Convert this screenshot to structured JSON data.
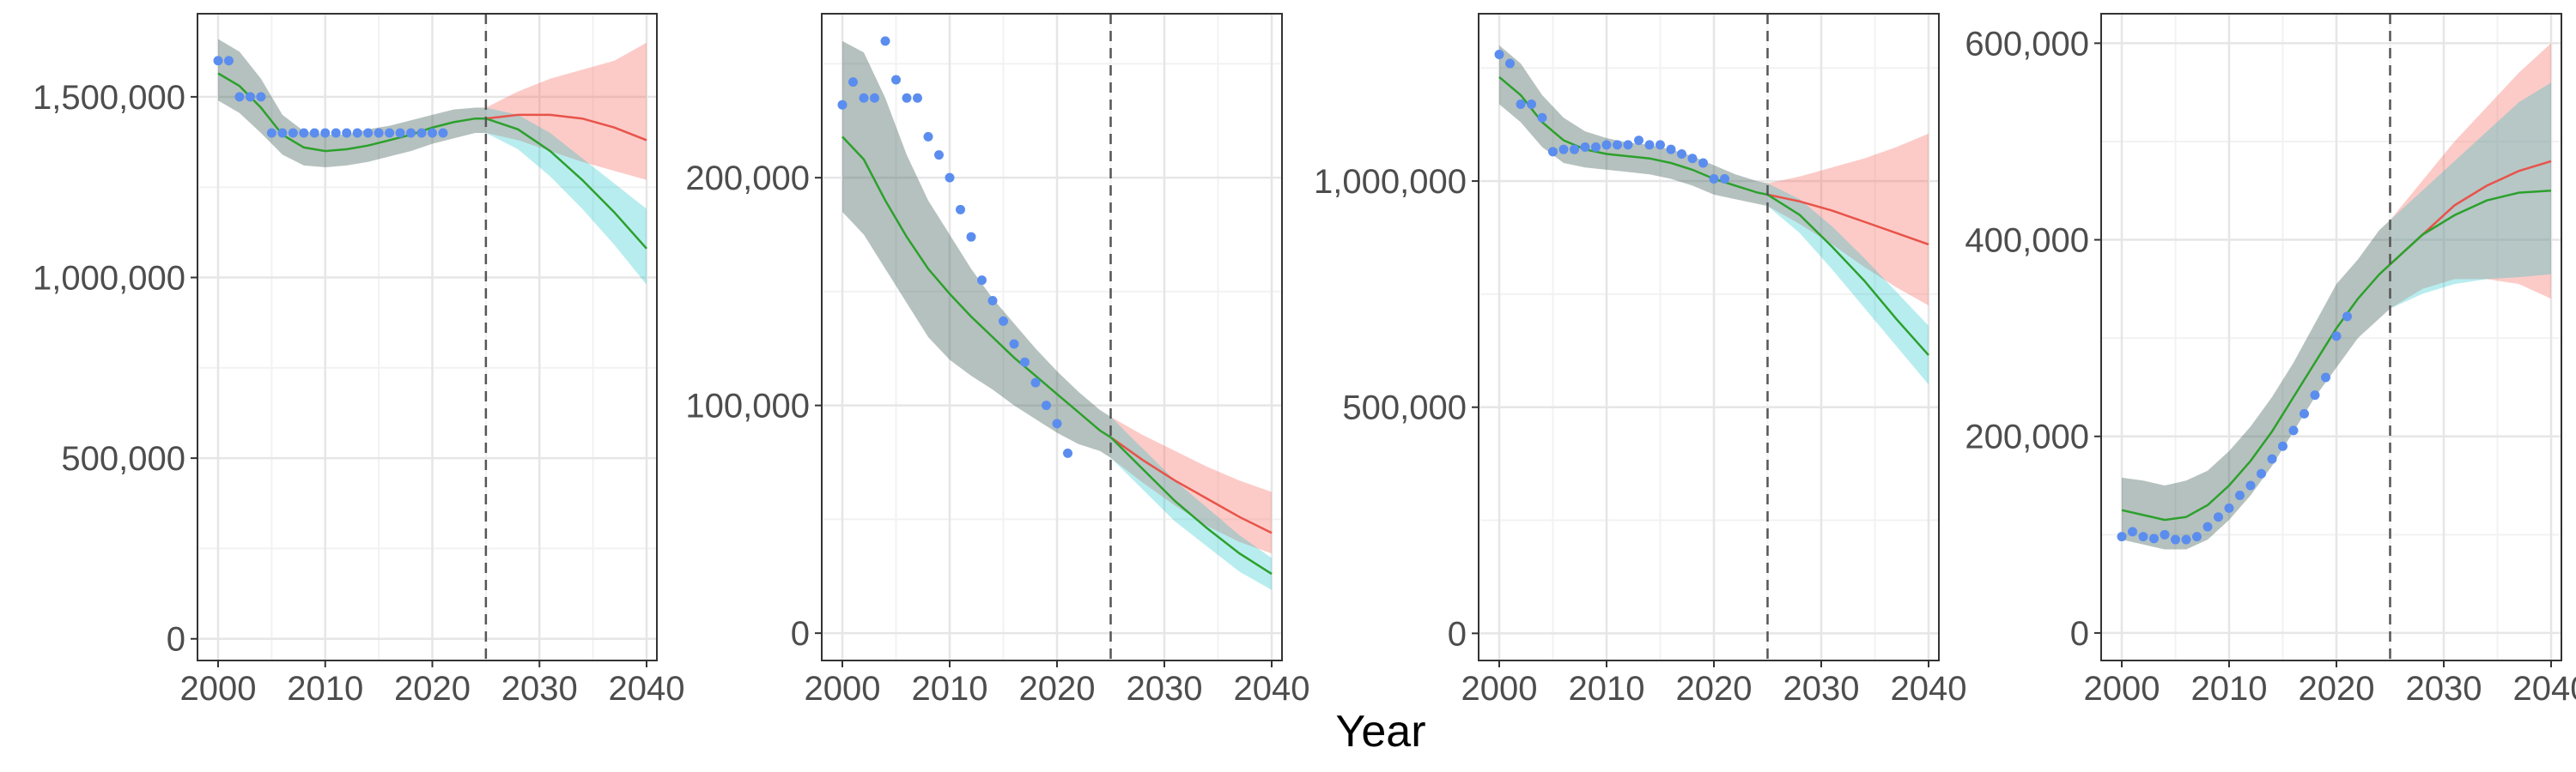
{
  "figure": {
    "x_axis_title": "Year"
  },
  "colors": {
    "observed": "#5b8def",
    "fit_line": "#2ca02c",
    "red_line": "#e8534a",
    "red_band": "#f8766d",
    "cyan_band": "#00bfc4",
    "fit_band": "#4e6b63",
    "vline": "#555555",
    "grid_major": "#e6e6e6",
    "grid_minor": "#f2f2f2",
    "panel_border": "#333333"
  },
  "chart_data": [
    {
      "type": "line",
      "xlim": [
        2000,
        2040
      ],
      "ylim": [
        -60000,
        1730000
      ],
      "x_ticks": [
        2000,
        2010,
        2020,
        2030,
        2040
      ],
      "y_ticks": [
        0,
        500000,
        1000000,
        1500000
      ],
      "y_tick_labels": [
        "0",
        "500,000",
        "1,000,000",
        "1,500,000"
      ],
      "vline_x": 2025,
      "observed": {
        "x": [
          2000,
          2001,
          2002,
          2003,
          2004,
          2005,
          2006,
          2007,
          2008,
          2009,
          2010,
          2011,
          2012,
          2013,
          2014,
          2015,
          2016,
          2017,
          2018,
          2019,
          2020,
          2021
        ],
        "y": [
          1600000,
          1600000,
          1500000,
          1500000,
          1500000,
          1400000,
          1400000,
          1400000,
          1400000,
          1400000,
          1400000,
          1400000,
          1400000,
          1400000,
          1400000,
          1400000,
          1400000,
          1400000,
          1400000,
          1400000,
          1400000,
          1400000
        ]
      },
      "fit": {
        "x": [
          2000,
          2002,
          2004,
          2006,
          2008,
          2010,
          2012,
          2014,
          2016,
          2018,
          2020,
          2022,
          2024,
          2025
        ],
        "y": [
          1565000,
          1530000,
          1470000,
          1395000,
          1360000,
          1350000,
          1355000,
          1365000,
          1380000,
          1395000,
          1415000,
          1430000,
          1440000,
          1440000
        ],
        "upper": [
          1660000,
          1625000,
          1550000,
          1450000,
          1405000,
          1395000,
          1395000,
          1410000,
          1420000,
          1435000,
          1450000,
          1465000,
          1470000,
          1470000
        ],
        "lower": [
          1490000,
          1455000,
          1400000,
          1340000,
          1310000,
          1305000,
          1310000,
          1320000,
          1335000,
          1350000,
          1370000,
          1385000,
          1400000,
          1400000
        ]
      },
      "red": {
        "x": [
          2025,
          2028,
          2031,
          2034,
          2037,
          2040
        ],
        "y": [
          1440000,
          1450000,
          1450000,
          1440000,
          1415000,
          1380000
        ],
        "upper": [
          1470000,
          1515000,
          1550000,
          1575000,
          1600000,
          1650000
        ],
        "lower": [
          1400000,
          1380000,
          1350000,
          1320000,
          1295000,
          1270000
        ]
      },
      "green_proj": {
        "x": [
          2025,
          2028,
          2031,
          2034,
          2037,
          2040
        ],
        "y": [
          1440000,
          1410000,
          1350000,
          1270000,
          1180000,
          1080000
        ],
        "upper": [
          1470000,
          1450000,
          1400000,
          1330000,
          1260000,
          1190000
        ],
        "lower": [
          1400000,
          1355000,
          1280000,
          1190000,
          1090000,
          980000
        ]
      }
    },
    {
      "type": "line",
      "xlim": [
        2000,
        2040
      ],
      "ylim": [
        -12000,
        272000
      ],
      "x_ticks": [
        2000,
        2010,
        2020,
        2030,
        2040
      ],
      "y_ticks": [
        0,
        100000,
        200000
      ],
      "y_tick_labels": [
        "0",
        "100,000",
        "200,000"
      ],
      "vline_x": 2025,
      "observed": {
        "x": [
          2000,
          2001,
          2002,
          2003,
          2004,
          2005,
          2006,
          2007,
          2008,
          2009,
          2010,
          2011,
          2012,
          2013,
          2014,
          2015,
          2016,
          2017,
          2018,
          2019,
          2020,
          2021
        ],
        "y": [
          232000,
          242000,
          235000,
          235000,
          260000,
          243000,
          235000,
          235000,
          218000,
          210000,
          200000,
          186000,
          174000,
          155000,
          146000,
          137000,
          127000,
          119000,
          110000,
          100000,
          92000,
          79000
        ]
      },
      "fit": {
        "x": [
          2000,
          2002,
          2004,
          2006,
          2008,
          2010,
          2012,
          2014,
          2016,
          2018,
          2020,
          2022,
          2024,
          2025
        ],
        "y": [
          218000,
          208000,
          190000,
          174000,
          160000,
          149000,
          139000,
          130000,
          121000,
          113000,
          105000,
          97000,
          89000,
          86000
        ],
        "upper": [
          260000,
          255000,
          235000,
          210000,
          190000,
          175000,
          160000,
          147000,
          136000,
          125000,
          115000,
          106000,
          98000,
          95000
        ],
        "lower": [
          185000,
          175000,
          160000,
          145000,
          130000,
          120000,
          113000,
          107000,
          100000,
          94000,
          88000,
          83000,
          80000,
          77000
        ]
      },
      "red": {
        "x": [
          2025,
          2028,
          2031,
          2034,
          2037,
          2040
        ],
        "y": [
          86000,
          76000,
          67000,
          59000,
          51000,
          44000
        ],
        "upper": [
          95000,
          87000,
          80000,
          73000,
          67000,
          62000
        ],
        "lower": [
          77000,
          66000,
          56000,
          47000,
          40000,
          35000
        ]
      },
      "green_proj": {
        "x": [
          2025,
          2028,
          2031,
          2034,
          2037,
          2040
        ],
        "y": [
          86000,
          72000,
          58000,
          46000,
          35000,
          26000
        ],
        "upper": [
          95000,
          81000,
          67000,
          55000,
          43000,
          33000
        ],
        "lower": [
          77000,
          63000,
          49000,
          38000,
          27000,
          19000
        ]
      }
    },
    {
      "type": "line",
      "xlim": [
        2000,
        2040
      ],
      "ylim": [
        -60000,
        1370000
      ],
      "x_ticks": [
        2000,
        2010,
        2020,
        2030,
        2040
      ],
      "y_ticks": [
        0,
        500000,
        1000000
      ],
      "y_tick_labels": [
        "0",
        "500,000",
        "1,000,000"
      ],
      "vline_x": 2025,
      "observed": {
        "x": [
          2000,
          2001,
          2002,
          2003,
          2004,
          2005,
          2006,
          2007,
          2008,
          2009,
          2010,
          2011,
          2012,
          2013,
          2014,
          2015,
          2016,
          2017,
          2018,
          2019,
          2020,
          2021
        ],
        "y": [
          1280000,
          1260000,
          1170000,
          1170000,
          1140000,
          1065000,
          1070000,
          1070000,
          1075000,
          1075000,
          1080000,
          1080000,
          1080000,
          1090000,
          1080000,
          1080000,
          1070000,
          1060000,
          1050000,
          1040000,
          1005000,
          1005000
        ]
      },
      "fit": {
        "x": [
          2000,
          2002,
          2004,
          2006,
          2008,
          2010,
          2012,
          2014,
          2016,
          2018,
          2020,
          2022,
          2024,
          2025
        ],
        "y": [
          1230000,
          1190000,
          1130000,
          1090000,
          1070000,
          1060000,
          1055000,
          1050000,
          1040000,
          1025000,
          1005000,
          990000,
          975000,
          970000
        ],
        "upper": [
          1300000,
          1260000,
          1190000,
          1140000,
          1110000,
          1095000,
          1085000,
          1080000,
          1070000,
          1055000,
          1035000,
          1015000,
          1000000,
          995000
        ],
        "lower": [
          1170000,
          1130000,
          1075000,
          1040000,
          1030000,
          1025000,
          1020000,
          1015000,
          1005000,
          990000,
          970000,
          960000,
          950000,
          945000
        ]
      },
      "red": {
        "x": [
          2025,
          2028,
          2031,
          2034,
          2037,
          2040
        ],
        "y": [
          970000,
          955000,
          935000,
          910000,
          885000,
          860000
        ],
        "upper": [
          995000,
          1010000,
          1030000,
          1050000,
          1075000,
          1105000
        ],
        "lower": [
          945000,
          905000,
          860000,
          810000,
          765000,
          725000
        ]
      },
      "green_proj": {
        "x": [
          2025,
          2028,
          2031,
          2034,
          2037,
          2040
        ],
        "y": [
          970000,
          925000,
          855000,
          780000,
          695000,
          615000
        ],
        "upper": [
          995000,
          960000,
          900000,
          830000,
          755000,
          680000
        ],
        "lower": [
          945000,
          885000,
          805000,
          720000,
          635000,
          550000
        ]
      }
    },
    {
      "type": "line",
      "xlim": [
        2000,
        2040
      ],
      "ylim": [
        -28000,
        630000
      ],
      "x_ticks": [
        2000,
        2010,
        2020,
        2030,
        2040
      ],
      "y_ticks": [
        0,
        200000,
        400000,
        600000
      ],
      "y_tick_labels": [
        "0",
        "200,000",
        "400,000",
        "600,000"
      ],
      "vline_x": 2025,
      "observed": {
        "x": [
          2000,
          2001,
          2002,
          2003,
          2004,
          2005,
          2006,
          2007,
          2008,
          2009,
          2010,
          2011,
          2012,
          2013,
          2014,
          2015,
          2016,
          2017,
          2018,
          2019,
          2020,
          2021
        ],
        "y": [
          98000,
          103000,
          98000,
          96000,
          100000,
          95000,
          95000,
          98000,
          108000,
          118000,
          127000,
          140000,
          150000,
          162000,
          177000,
          190000,
          206000,
          223000,
          242000,
          260000,
          302000,
          322000
        ]
      },
      "fit": {
        "x": [
          2000,
          2002,
          2004,
          2006,
          2008,
          2010,
          2012,
          2014,
          2016,
          2018,
          2020,
          2022,
          2024,
          2025
        ],
        "y": [
          125000,
          120000,
          115000,
          118000,
          130000,
          150000,
          175000,
          205000,
          240000,
          275000,
          310000,
          340000,
          365000,
          375000
        ],
        "upper": [
          158000,
          155000,
          150000,
          155000,
          165000,
          185000,
          210000,
          240000,
          275000,
          315000,
          355000,
          380000,
          410000,
          420000
        ],
        "lower": [
          95000,
          90000,
          85000,
          85000,
          95000,
          115000,
          140000,
          170000,
          205000,
          240000,
          270000,
          300000,
          320000,
          330000
        ]
      },
      "red": {
        "x": [
          2025,
          2028,
          2031,
          2034,
          2037,
          2040
        ],
        "y": [
          375000,
          405000,
          435000,
          455000,
          470000,
          480000
        ],
        "upper": [
          420000,
          460000,
          500000,
          535000,
          570000,
          600000
        ],
        "lower": [
          330000,
          350000,
          360000,
          360000,
          355000,
          340000
        ]
      },
      "green_proj": {
        "x": [
          2025,
          2028,
          2031,
          2034,
          2037,
          2040
        ],
        "y": [
          375000,
          405000,
          425000,
          440000,
          448000,
          450000
        ],
        "upper": [
          420000,
          450000,
          480000,
          510000,
          540000,
          560000
        ],
        "lower": [
          330000,
          345000,
          355000,
          360000,
          362000,
          365000
        ]
      }
    }
  ]
}
